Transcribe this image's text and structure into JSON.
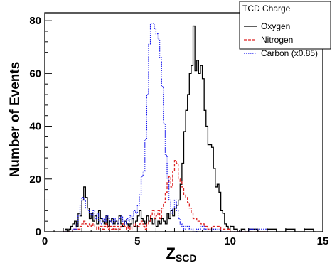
{
  "chart_data": {
    "type": "line",
    "style": "step-histogram",
    "title": "",
    "xlabel": "Z",
    "xlabel_subscript": "SCD",
    "ylabel": "Number of Events",
    "xlim": [
      0,
      15
    ],
    "ylim": [
      0,
      83
    ],
    "x_ticks": [
      0,
      5,
      10,
      15
    ],
    "y_ticks": [
      0,
      20,
      40,
      60,
      80
    ],
    "grid": false,
    "legend": {
      "title": "TCD Charge",
      "placement": "top-right"
    },
    "bin_width": 0.1,
    "series": [
      {
        "name": "Oxygen",
        "color": "#000000",
        "dash": "solid",
        "x": [
          1.0,
          1.1,
          1.2,
          1.3,
          1.4,
          1.5,
          1.6,
          1.7,
          1.8,
          1.9,
          2.0,
          2.1,
          2.2,
          2.3,
          2.4,
          2.5,
          2.6,
          2.7,
          2.8,
          2.9,
          3.0,
          3.1,
          3.2,
          3.3,
          3.4,
          3.5,
          3.6,
          3.7,
          3.8,
          3.9,
          4.0,
          4.1,
          4.2,
          4.3,
          4.4,
          4.5,
          4.6,
          4.7,
          4.8,
          4.9,
          5.0,
          5.1,
          5.2,
          5.3,
          5.4,
          5.5,
          5.6,
          5.7,
          5.8,
          5.9,
          6.0,
          6.1,
          6.2,
          6.3,
          6.4,
          6.5,
          6.6,
          6.7,
          6.8,
          6.9,
          7.0,
          7.1,
          7.2,
          7.3,
          7.4,
          7.5,
          7.6,
          7.7,
          7.8,
          7.9,
          8.0,
          8.1,
          8.2,
          8.3,
          8.4,
          8.5,
          8.6,
          8.7,
          8.8,
          8.9,
          9.0,
          9.1,
          9.2,
          9.3,
          9.4,
          9.5,
          9.6,
          9.7,
          9.8,
          9.9,
          10.0,
          10.2,
          10.4,
          10.6,
          10.8,
          11.0,
          11.5,
          12.0,
          12.5,
          13.0,
          13.5,
          14.0,
          14.5
        ],
        "values": [
          0,
          1,
          0,
          1,
          2,
          3,
          4,
          2,
          7,
          6,
          12,
          17,
          13,
          9,
          5,
          7,
          4,
          6,
          3,
          8,
          5,
          4,
          3,
          6,
          2,
          4,
          5,
          3,
          4,
          3,
          6,
          3,
          2,
          4,
          3,
          2,
          3,
          5,
          2,
          4,
          6,
          8,
          5,
          4,
          3,
          6,
          4,
          5,
          3,
          5,
          2,
          4,
          3,
          5,
          4,
          3,
          7,
          5,
          8,
          6,
          9,
          10,
          12,
          18,
          26,
          38,
          46,
          52,
          60,
          63,
          78,
          61,
          65,
          60,
          63,
          58,
          46,
          40,
          33,
          33,
          32,
          24,
          17,
          18,
          15,
          8,
          7,
          3,
          2,
          1,
          2,
          1,
          0,
          1,
          0,
          1,
          0,
          1,
          0,
          1,
          0,
          1,
          0
        ]
      },
      {
        "name": "Nitrogen",
        "color": "#dd2222",
        "dash": "dashed",
        "x": [
          1.0,
          1.5,
          1.8,
          1.9,
          2.0,
          2.1,
          2.2,
          2.3,
          2.4,
          2.5,
          2.6,
          2.7,
          2.8,
          2.9,
          3.0,
          3.1,
          3.2,
          3.3,
          3.4,
          3.5,
          3.6,
          3.7,
          3.8,
          3.9,
          4.0,
          4.1,
          4.2,
          4.3,
          4.4,
          4.5,
          4.6,
          4.7,
          4.8,
          4.9,
          5.0,
          5.1,
          5.2,
          5.3,
          5.4,
          5.5,
          5.6,
          5.7,
          5.8,
          5.9,
          6.0,
          6.1,
          6.2,
          6.3,
          6.4,
          6.5,
          6.6,
          6.7,
          6.8,
          6.9,
          7.0,
          7.1,
          7.2,
          7.3,
          7.4,
          7.5,
          7.6,
          7.7,
          7.8,
          7.9,
          8.0,
          8.2,
          8.4,
          8.6,
          8.8,
          9.0,
          9.5,
          10.0,
          12.0
        ],
        "values": [
          0,
          1,
          1,
          2,
          3,
          4,
          3,
          2,
          3,
          2,
          3,
          2,
          1,
          2,
          2,
          1,
          2,
          3,
          1,
          2,
          1,
          2,
          1,
          2,
          1,
          2,
          3,
          2,
          1,
          2,
          1,
          2,
          3,
          2,
          2,
          3,
          4,
          2,
          1,
          3,
          4,
          6,
          8,
          5,
          6,
          8,
          5,
          9,
          11,
          15,
          19,
          21,
          17,
          23,
          27,
          26,
          20,
          19,
          17,
          14,
          13,
          11,
          9,
          7,
          5,
          4,
          3,
          2,
          1,
          2,
          1,
          0,
          0
        ]
      },
      {
        "name": "Carbon (x0.85)",
        "color": "#1a1aee",
        "dash": "dotted",
        "x": [
          1.0,
          1.5,
          1.7,
          1.8,
          1.9,
          2.0,
          2.1,
          2.2,
          2.3,
          2.4,
          2.5,
          2.6,
          2.7,
          2.8,
          2.9,
          3.0,
          3.1,
          3.2,
          3.3,
          3.4,
          3.5,
          3.6,
          3.7,
          3.8,
          3.9,
          4.0,
          4.1,
          4.2,
          4.3,
          4.4,
          4.5,
          4.6,
          4.7,
          4.8,
          4.9,
          5.0,
          5.1,
          5.2,
          5.3,
          5.4,
          5.5,
          5.6,
          5.7,
          5.8,
          5.9,
          6.0,
          6.1,
          6.2,
          6.3,
          6.4,
          6.5,
          6.6,
          6.7,
          6.8,
          6.9,
          7.0,
          7.1,
          7.2,
          7.3,
          7.4,
          7.5,
          7.6,
          7.8,
          8.0,
          8.2,
          8.4,
          8.6,
          8.8,
          9.0,
          9.5,
          10.0,
          11.0,
          12.0
        ],
        "values": [
          0,
          1,
          3,
          6,
          10,
          13,
          12,
          9,
          8,
          7,
          6,
          8,
          5,
          7,
          4,
          3,
          5,
          4,
          6,
          5,
          4,
          3,
          5,
          4,
          3,
          5,
          6,
          4,
          3,
          5,
          4,
          6,
          5,
          8,
          7,
          10,
          14,
          21,
          23,
          35,
          52,
          71,
          79,
          79,
          77,
          75,
          73,
          66,
          55,
          41,
          29,
          20,
          12,
          7,
          9,
          12,
          8,
          5,
          3,
          2,
          1,
          2,
          1,
          0,
          1,
          2,
          1,
          0,
          1,
          0,
          0,
          1,
          0
        ]
      }
    ]
  }
}
